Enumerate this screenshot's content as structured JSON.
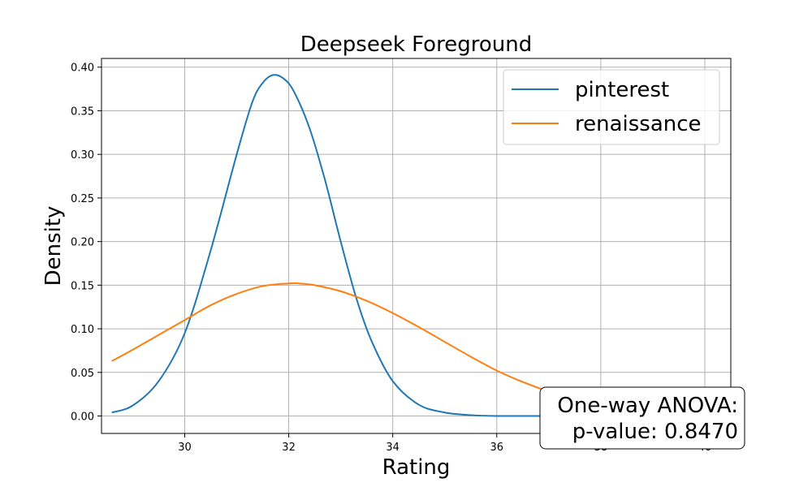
{
  "chart_data": {
    "type": "line",
    "title": "Deepseek Foreground",
    "xlabel": "Rating",
    "ylabel": "Density",
    "xlim": [
      28.4,
      40.5
    ],
    "ylim": [
      -0.02,
      0.41
    ],
    "xticks": [
      30,
      32,
      34,
      36,
      38,
      40
    ],
    "yticks": [
      0.0,
      0.05,
      0.1,
      0.15,
      0.2,
      0.25,
      0.3,
      0.35,
      0.4
    ],
    "xtick_labels": [
      "30",
      "32",
      "34",
      "36",
      "38",
      "40"
    ],
    "ytick_labels": [
      "0.00",
      "0.05",
      "0.10",
      "0.15",
      "0.20",
      "0.25",
      "0.30",
      "0.35",
      "0.40"
    ],
    "grid": true,
    "legend_position": "top-right",
    "series": [
      {
        "name": "pinterest",
        "color": "#1f77b4",
        "x": [
          28.6,
          29.0,
          29.5,
          30.0,
          30.5,
          31.0,
          31.3,
          31.5,
          31.7,
          31.9,
          32.1,
          32.4,
          32.7,
          33.0,
          33.3,
          33.6,
          34.0,
          34.5,
          35.0,
          35.5,
          36.0,
          37.0,
          38.0,
          39.0,
          40.0
        ],
        "y": [
          0.004,
          0.012,
          0.04,
          0.095,
          0.19,
          0.3,
          0.36,
          0.382,
          0.391,
          0.387,
          0.372,
          0.33,
          0.27,
          0.2,
          0.135,
          0.085,
          0.04,
          0.013,
          0.004,
          0.001,
          0.0,
          0.0,
          0.0,
          0.0,
          0.0
        ]
      },
      {
        "name": "renaissance",
        "color": "#ff7f0e",
        "x": [
          28.6,
          29.0,
          29.5,
          30.0,
          30.5,
          31.0,
          31.5,
          32.0,
          32.2,
          32.5,
          33.0,
          33.5,
          34.0,
          34.5,
          35.0,
          35.5,
          36.0,
          36.5,
          37.0,
          37.5,
          38.0,
          38.5,
          39.0,
          39.5,
          40.0
        ],
        "y": [
          0.063,
          0.076,
          0.093,
          0.11,
          0.127,
          0.14,
          0.149,
          0.152,
          0.152,
          0.15,
          0.143,
          0.132,
          0.118,
          0.102,
          0.085,
          0.068,
          0.052,
          0.039,
          0.028,
          0.019,
          0.012,
          0.007,
          0.004,
          0.002,
          0.001
        ]
      }
    ],
    "annotation": {
      "line1": "One-way ANOVA:",
      "line2": "p-value: 0.8470"
    }
  }
}
